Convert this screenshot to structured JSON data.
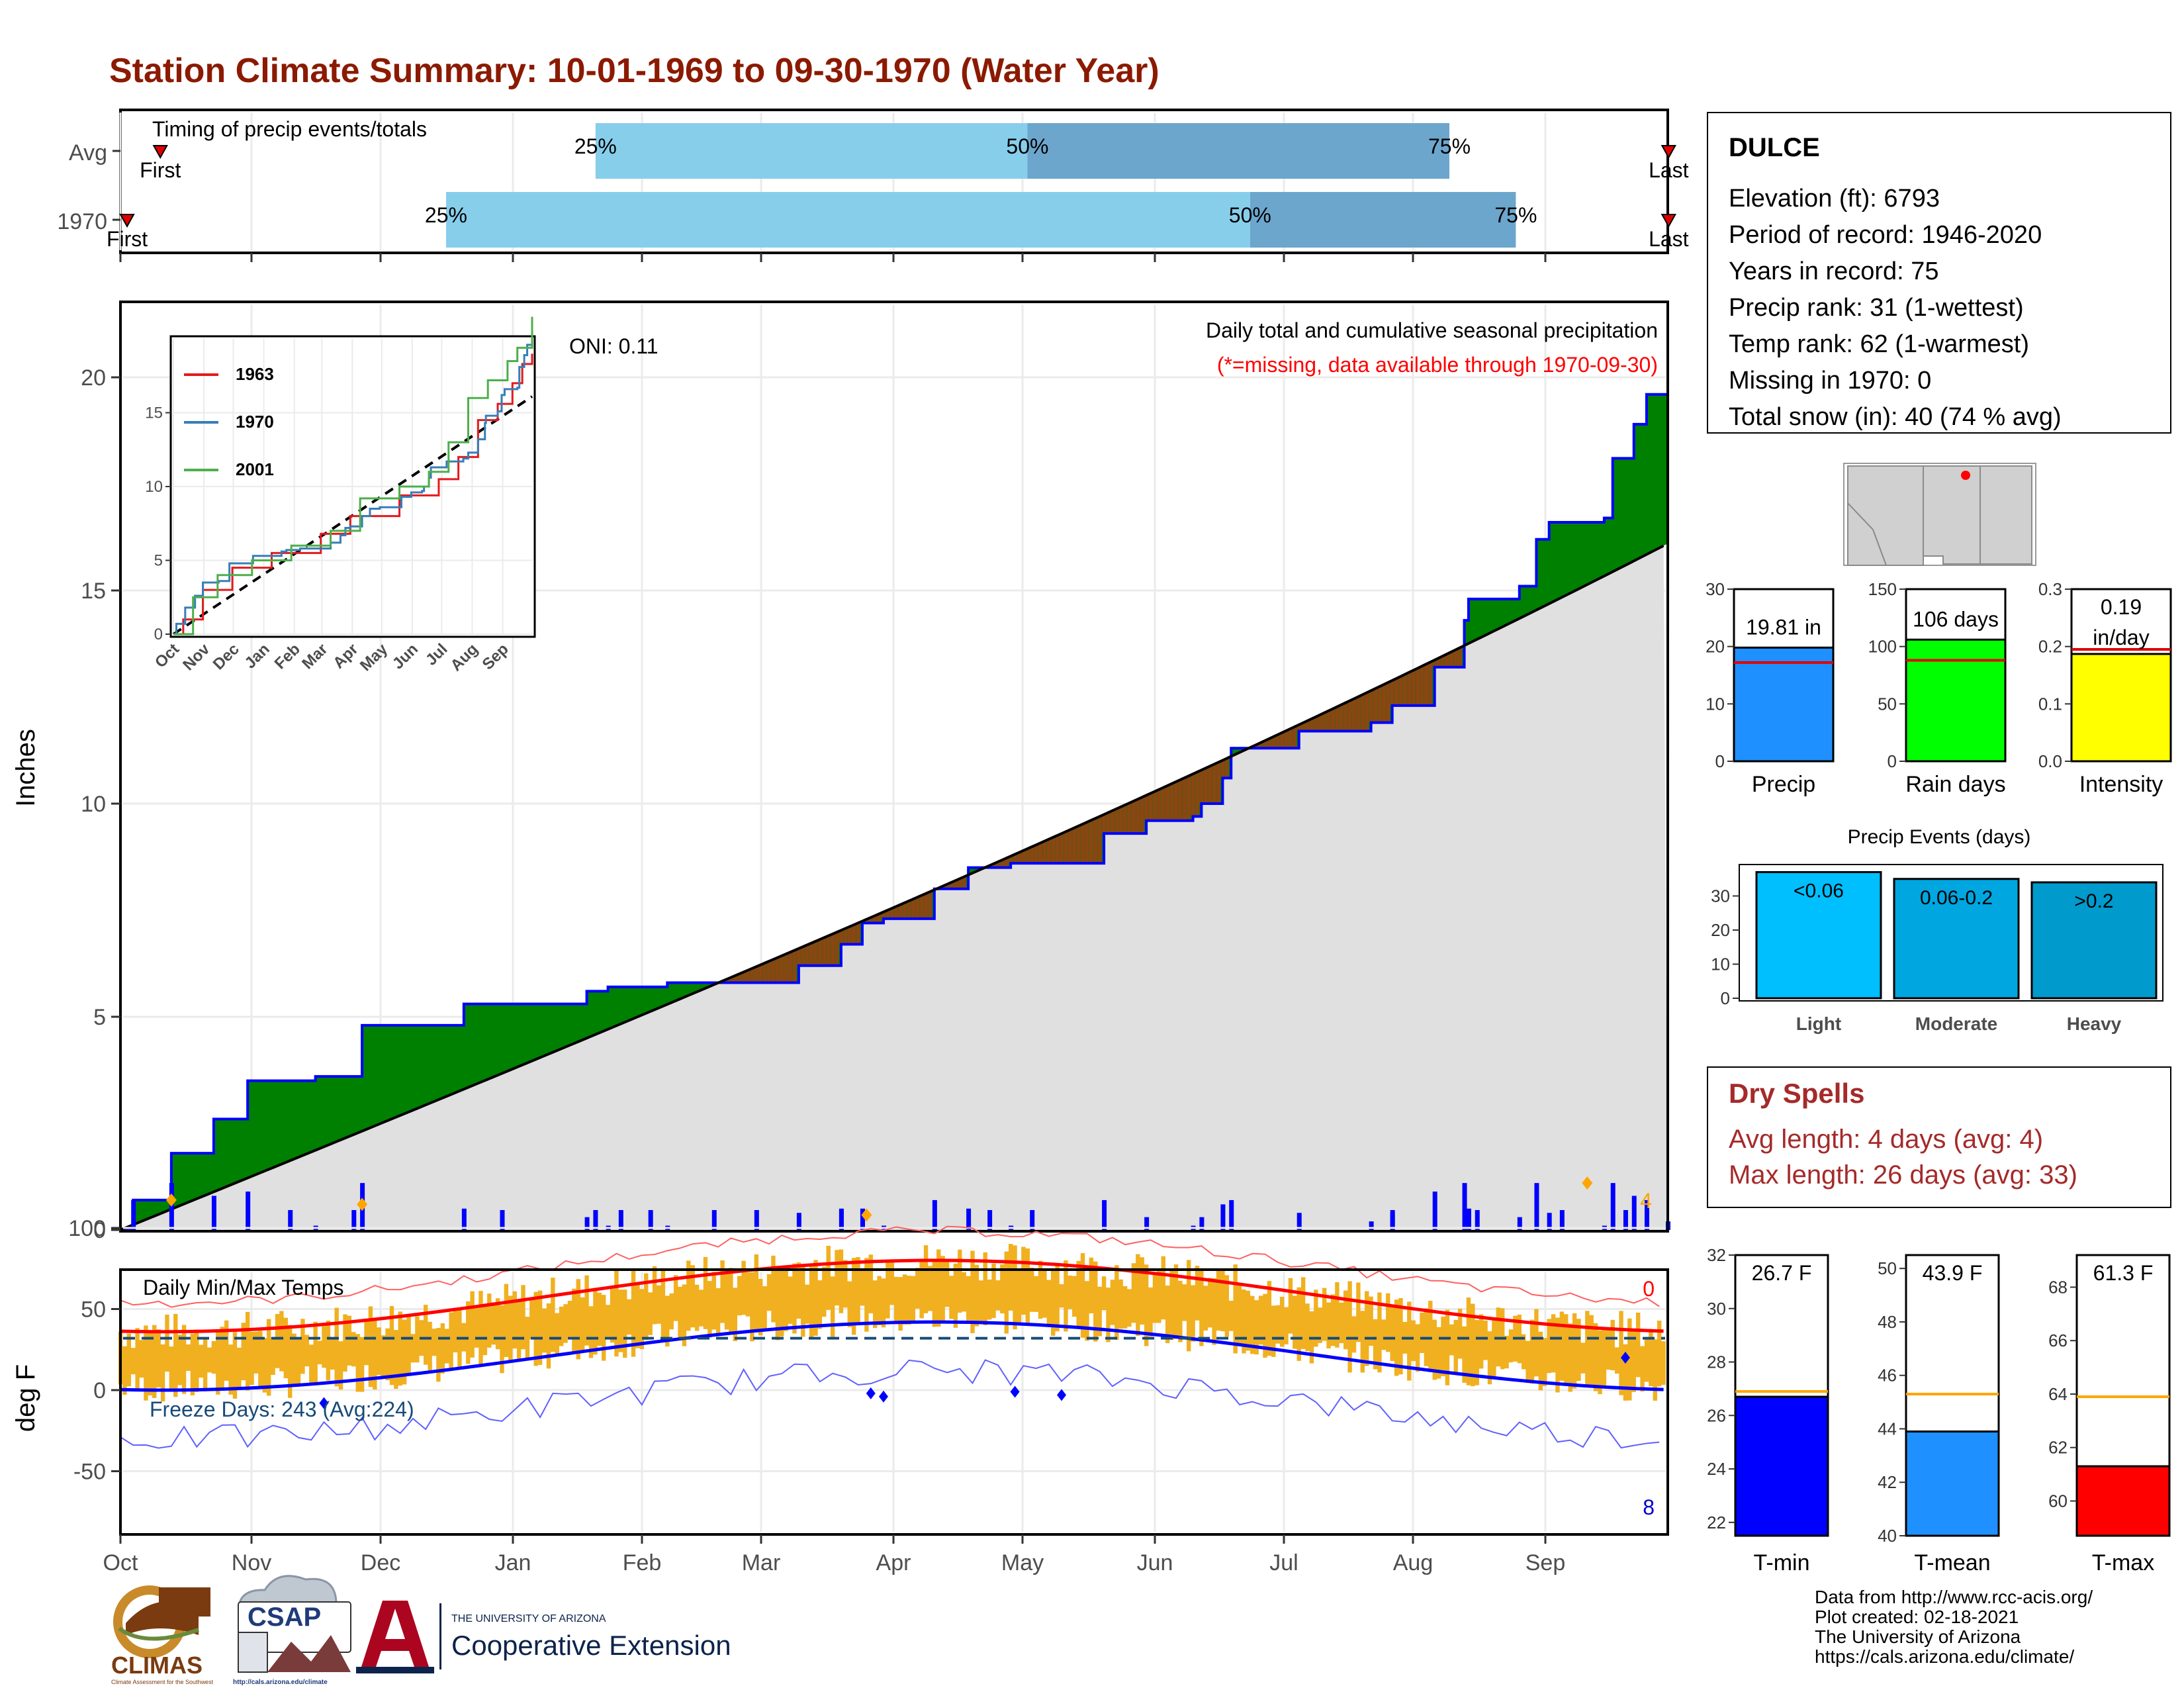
{
  "title": "Station Climate Summary: 10-01-1969 to 09-30-1970 (Water Year)",
  "months": [
    "Oct",
    "Nov",
    "Dec",
    "Jan",
    "Feb",
    "Mar",
    "Apr",
    "May",
    "Jun",
    "Jul",
    "Aug",
    "Sep"
  ],
  "timing": {
    "label": "Timing of precip events/totals",
    "rows": [
      {
        "name": "Avg",
        "first_label": "First",
        "last_label": "Last",
        "p25": "25%",
        "p50": "50%",
        "p75": "75%",
        "first_day": 12,
        "q25_day": 143,
        "q50_day": 273,
        "q75_day": 400,
        "last_day": 466
      },
      {
        "name": "1970",
        "first_label": "First",
        "last_label": "Last",
        "p25": "25%",
        "p50": "50%",
        "p75": "75%",
        "first_day": 2,
        "q25_day": 98,
        "q50_day": 340,
        "q75_day": 420,
        "last_day": 466
      }
    ]
  },
  "precip": {
    "y_axis_label": "Inches",
    "y_ticks": [
      "0",
      "5",
      "10",
      "15",
      "20"
    ],
    "oni_label": "ONI: 0.11",
    "caption": "Daily total and cumulative seasonal precipitation",
    "missing_note": "(*=missing, data available through 1970-09-30)",
    "extreme_count": "4",
    "cumulative_steps": [
      [
        0,
        0
      ],
      [
        3,
        0.7
      ],
      [
        11,
        0.7
      ],
      [
        12,
        1.8
      ],
      [
        21,
        1.8
      ],
      [
        22,
        2.6
      ],
      [
        29,
        2.6
      ],
      [
        30,
        3.5
      ],
      [
        45,
        3.5
      ],
      [
        46,
        3.6
      ],
      [
        56,
        3.6
      ],
      [
        57,
        4.8
      ],
      [
        80,
        4.8
      ],
      [
        81,
        5.3
      ],
      [
        109,
        5.3
      ],
      [
        110,
        5.6
      ],
      [
        115,
        5.7
      ],
      [
        128,
        5.7
      ],
      [
        129,
        5.8
      ],
      [
        160,
        6.2
      ],
      [
        170,
        6.7
      ],
      [
        175,
        7.2
      ],
      [
        180,
        7.3
      ],
      [
        192,
        8.0
      ],
      [
        200,
        8.5
      ],
      [
        210,
        8.6
      ],
      [
        232,
        9.3
      ],
      [
        242,
        9.6
      ],
      [
        253,
        9.7
      ],
      [
        255,
        10.0
      ],
      [
        260,
        10.6
      ],
      [
        262,
        11.3
      ],
      [
        275,
        11.3
      ],
      [
        278,
        11.7
      ],
      [
        295,
        11.9
      ],
      [
        300,
        12.3
      ],
      [
        310,
        13.2
      ],
      [
        317,
        14.3
      ],
      [
        318,
        14.8
      ],
      [
        330,
        15.1
      ],
      [
        334,
        16.2
      ],
      [
        337,
        16.6
      ],
      [
        350,
        16.7
      ],
      [
        352,
        18.1
      ],
      [
        357,
        18.9
      ],
      [
        360,
        19.6
      ],
      [
        365,
        19.8
      ]
    ],
    "normal_end": 16.1,
    "inset": {
      "series": [
        {
          "name": "1963",
          "color": "#e41a1c"
        },
        {
          "name": "1970",
          "color": "#377eb8"
        },
        {
          "name": "2001",
          "color": "#4daf4a"
        }
      ],
      "y_ticks": [
        "0",
        "5",
        "10",
        "15"
      ],
      "x_ticks": [
        "Oct",
        "Nov",
        "Dec",
        "Jan",
        "Feb",
        "Mar",
        "Apr",
        "May",
        "Jun",
        "Jul",
        "Aug",
        "Sep"
      ]
    }
  },
  "temps": {
    "label": "Daily Min/Max Temps",
    "y_axis_label": "deg F",
    "y_ticks": [
      "100",
      "50",
      "0",
      "-50"
    ],
    "freeze_label": "Freeze Days: 243 (Avg:224)",
    "hot_count": "0",
    "cold_count": "8"
  },
  "station": {
    "name": "DULCE",
    "lines": [
      "Elevation (ft): 6793",
      "Period of record: 1946-2020",
      "Years in record: 75",
      "Precip rank: 31 (1-wettest)",
      "Temp rank: 62 (1-warmest)",
      "Missing in 1970: 0",
      "Total snow (in): 40 (74 % avg)"
    ]
  },
  "bar_panels": [
    {
      "label": "Precip",
      "value_label": "19.81 in",
      "value": 19.81,
      "avg": 17.2,
      "ymax": 30,
      "ticks": [
        "0",
        "10",
        "20",
        "30"
      ],
      "tick_values": [
        0,
        10,
        20,
        30
      ],
      "color": "#1e90ff"
    },
    {
      "label": "Rain days",
      "value_label": "106 days",
      "value": 106,
      "avg": 88,
      "ymax": 150,
      "ticks": [
        "0",
        "50",
        "100",
        "150"
      ],
      "tick_values": [
        0,
        50,
        100,
        150
      ],
      "color": "#00ff00"
    },
    {
      "label": "Intensity",
      "value_label": "0.19",
      "value_label2": "in/day",
      "value": 0.187,
      "avg": 0.195,
      "ymax": 0.3,
      "ticks": [
        "0.0",
        "0.1",
        "0.2",
        "0.3"
      ],
      "tick_values": [
        0,
        0.1,
        0.2,
        0.3
      ],
      "color": "#ffff00"
    }
  ],
  "precip_events": {
    "title": "Precip Events (days)",
    "ticks": [
      "0",
      "10",
      "20",
      "30"
    ],
    "bars": [
      {
        "label": "Light",
        "value_label": "<0.06",
        "value": 37,
        "color": "#00bfff"
      },
      {
        "label": "Moderate",
        "value_label": "0.06-0.2",
        "value": 35,
        "color": "#00a6e0"
      },
      {
        "label": "Heavy",
        "value_label": ">0.2",
        "value": 34,
        "color": "#009acd"
      }
    ]
  },
  "dry_spells": {
    "title": "Dry Spells",
    "avg_line": "Avg length: 4 days (avg: 4)",
    "max_line": "Max length: 26 days (avg: 33)"
  },
  "temp_panels": [
    {
      "label": "T-min",
      "value_label": "26.7 F",
      "value": 26.7,
      "avg": 26.9,
      "ymin": 21.5,
      "ymax": 32,
      "ticks": [
        "22",
        "24",
        "26",
        "28",
        "30",
        "32"
      ],
      "tick_values": [
        22,
        24,
        26,
        28,
        30,
        32
      ],
      "color": "#0000ff"
    },
    {
      "label": "T-mean",
      "value_label": "43.9 F",
      "value": 43.9,
      "avg": 45.3,
      "ymin": 40,
      "ymax": 50.5,
      "ticks": [
        "40",
        "42",
        "44",
        "46",
        "48",
        "50"
      ],
      "tick_values": [
        40,
        42,
        44,
        46,
        48,
        50
      ],
      "color": "#1e90ff"
    },
    {
      "label": "T-max",
      "value_label": "61.3 F",
      "value": 61.3,
      "avg": 63.9,
      "ymin": 58.7,
      "ymax": 69.2,
      "ticks": [
        "60",
        "62",
        "64",
        "66",
        "68"
      ],
      "tick_values": [
        60,
        62,
        64,
        66,
        68
      ],
      "color": "#ff0000"
    }
  ],
  "logos": {
    "climas": "CLIMAS",
    "climas_sub": "Climate Assessment for the Southwest",
    "csap": "CSAP",
    "csap_url": "http://cals.arizona.edu/climate",
    "ua_top": "THE UNIVERSITY OF ARIZONA",
    "ua_bottom": "Cooperative Extension"
  },
  "credits": [
    "Data from http://www.rcc-acis.org/",
    "Plot created: 02-18-2021",
    "The University of Arizona",
    "https://cals.arizona.edu/climate/"
  ],
  "colors": {
    "title": "#8b1a00",
    "cum_fill": "#008000",
    "cum_line": "#0000ff",
    "normal_fill": "#e0e0e0",
    "temp_bar": "#f0b020",
    "dry": "#a52a2a"
  }
}
